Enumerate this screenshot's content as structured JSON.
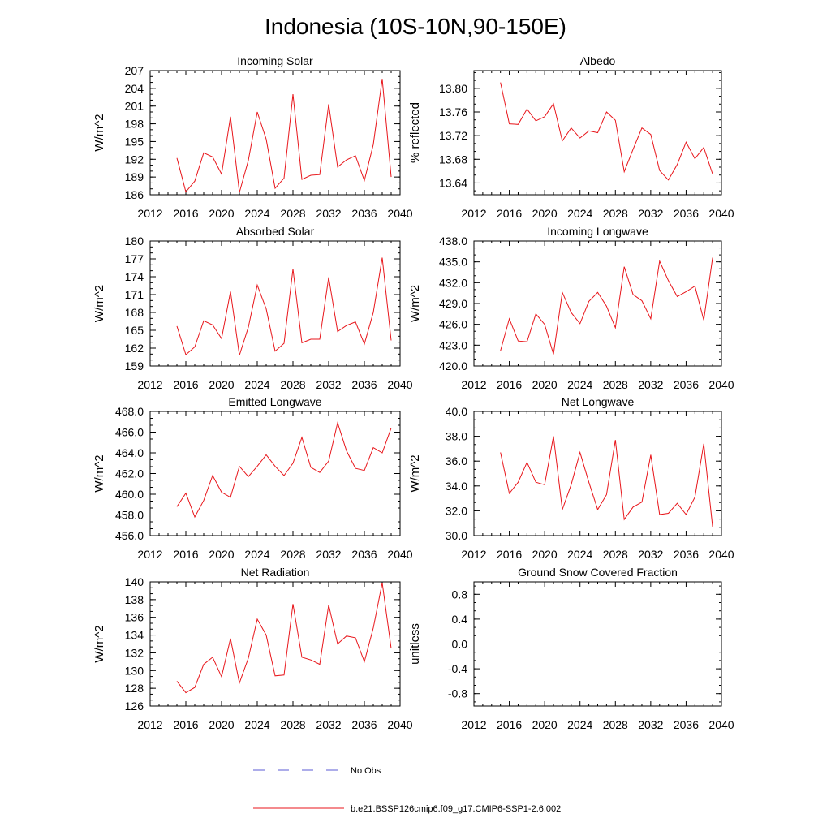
{
  "title": "Indonesia (10S-10N,90-150E)",
  "colors": {
    "model": "#e8161b",
    "obs": "#5b5bd6",
    "axis": "#000000"
  },
  "chart_data": [
    {
      "type": "line",
      "title": "Incoming Solar",
      "ylabel": "W/m^2",
      "xlim": [
        2012,
        2040
      ],
      "ylim": [
        186,
        207
      ],
      "xticks": [
        "2012",
        "2016",
        "2020",
        "2024",
        "2028",
        "2032",
        "2036",
        "2040"
      ],
      "yticks": [
        "186",
        "189",
        "192",
        "195",
        "198",
        "201",
        "204",
        "207"
      ],
      "x": [
        2015,
        2016,
        2017,
        2018,
        2019,
        2020,
        2021,
        2022,
        2023,
        2024,
        2025,
        2026,
        2027,
        2028,
        2029,
        2030,
        2031,
        2032,
        2033,
        2034,
        2035,
        2036,
        2037,
        2038,
        2039
      ],
      "values": [
        192.2,
        186.5,
        188.3,
        193.1,
        192.4,
        189.5,
        199.2,
        186.4,
        191.8,
        200.0,
        195.4,
        187.1,
        188.8,
        203.0,
        188.6,
        189.3,
        189.4,
        201.3,
        190.7,
        191.9,
        192.6,
        188.4,
        194.5,
        205.6,
        189.0
      ]
    },
    {
      "type": "line",
      "title": "Albedo",
      "ylabel": "% reflected",
      "xlim": [
        2012,
        2040
      ],
      "ylim": [
        13.62,
        13.83
      ],
      "xticks": [
        "2012",
        "2016",
        "2020",
        "2024",
        "2028",
        "2032",
        "2036",
        "2040"
      ],
      "yticks": [
        "13.64",
        "13.68",
        "13.72",
        "13.76",
        "13.80"
      ],
      "ytick_values": [
        13.64,
        13.68,
        13.72,
        13.76,
        13.8
      ],
      "x": [
        2015,
        2016,
        2017,
        2018,
        2019,
        2020,
        2021,
        2022,
        2023,
        2024,
        2025,
        2026,
        2027,
        2028,
        2029,
        2030,
        2031,
        2032,
        2033,
        2034,
        2035,
        2036,
        2037,
        2038,
        2039
      ],
      "values": [
        13.81,
        13.74,
        13.739,
        13.765,
        13.745,
        13.752,
        13.774,
        13.711,
        13.733,
        13.716,
        13.728,
        13.725,
        13.76,
        13.746,
        13.659,
        13.697,
        13.733,
        13.722,
        13.661,
        13.645,
        13.671,
        13.709,
        13.681,
        13.7,
        13.655
      ]
    },
    {
      "type": "line",
      "title": "Absorbed Solar",
      "ylabel": "W/m^2",
      "xlim": [
        2012,
        2040
      ],
      "ylim": [
        159,
        180
      ],
      "xticks": [
        "2012",
        "2016",
        "2020",
        "2024",
        "2028",
        "2032",
        "2036",
        "2040"
      ],
      "yticks": [
        "159",
        "162",
        "165",
        "168",
        "171",
        "174",
        "177",
        "180"
      ],
      "x": [
        2015,
        2016,
        2017,
        2018,
        2019,
        2020,
        2021,
        2022,
        2023,
        2024,
        2025,
        2026,
        2027,
        2028,
        2029,
        2030,
        2031,
        2032,
        2033,
        2034,
        2035,
        2036,
        2037,
        2038,
        2039
      ],
      "values": [
        165.7,
        160.9,
        162.2,
        166.6,
        165.9,
        163.6,
        171.5,
        160.8,
        165.5,
        172.6,
        168.6,
        161.5,
        162.8,
        175.3,
        162.9,
        163.5,
        163.5,
        173.9,
        164.8,
        165.8,
        166.4,
        162.7,
        168.0,
        177.2,
        163.3
      ]
    },
    {
      "type": "line",
      "title": "Incoming Longwave",
      "ylabel": "W/m^2",
      "xlim": [
        2012,
        2040
      ],
      "ylim": [
        420,
        438
      ],
      "xticks": [
        "2012",
        "2016",
        "2020",
        "2024",
        "2028",
        "2032",
        "2036",
        "2040"
      ],
      "yticks": [
        "420.0",
        "423.0",
        "426.0",
        "429.0",
        "432.0",
        "435.0",
        "438.0"
      ],
      "x": [
        2015,
        2016,
        2017,
        2018,
        2019,
        2020,
        2021,
        2022,
        2023,
        2024,
        2025,
        2026,
        2027,
        2028,
        2029,
        2030,
        2031,
        2032,
        2033,
        2034,
        2035,
        2036,
        2037,
        2038,
        2039
      ],
      "values": [
        422.2,
        426.8,
        423.6,
        423.5,
        427.5,
        426.0,
        421.7,
        430.6,
        427.7,
        426.1,
        429.3,
        430.6,
        428.6,
        425.5,
        434.3,
        430.3,
        429.4,
        426.8,
        435.1,
        432.3,
        430.0,
        430.7,
        431.5,
        426.6,
        435.6
      ]
    },
    {
      "type": "line",
      "title": "Emitted Longwave",
      "ylabel": "W/m^2",
      "xlim": [
        2012,
        2040
      ],
      "ylim": [
        456,
        468
      ],
      "xticks": [
        "2012",
        "2016",
        "2020",
        "2024",
        "2028",
        "2032",
        "2036",
        "2040"
      ],
      "yticks": [
        "456.0",
        "458.0",
        "460.0",
        "462.0",
        "464.0",
        "466.0",
        "468.0"
      ],
      "x": [
        2015,
        2016,
        2017,
        2018,
        2019,
        2020,
        2021,
        2022,
        2023,
        2024,
        2025,
        2026,
        2027,
        2028,
        2029,
        2030,
        2031,
        2032,
        2033,
        2034,
        2035,
        2036,
        2037,
        2038,
        2039
      ],
      "values": [
        458.8,
        460.1,
        457.8,
        459.4,
        461.8,
        460.2,
        459.7,
        462.7,
        461.7,
        462.7,
        463.8,
        462.7,
        461.8,
        463.0,
        465.5,
        462.6,
        462.1,
        463.2,
        466.9,
        464.2,
        462.5,
        462.3,
        464.5,
        464.0,
        466.4
      ]
    },
    {
      "type": "line",
      "title": "Net Longwave",
      "ylabel": "W/m^2",
      "xlim": [
        2012,
        2040
      ],
      "ylim": [
        30,
        40
      ],
      "xticks": [
        "2012",
        "2016",
        "2020",
        "2024",
        "2028",
        "2032",
        "2036",
        "2040"
      ],
      "yticks": [
        "30.0",
        "32.0",
        "34.0",
        "36.0",
        "38.0",
        "40.0"
      ],
      "x": [
        2015,
        2016,
        2017,
        2018,
        2019,
        2020,
        2021,
        2022,
        2023,
        2024,
        2025,
        2026,
        2027,
        2028,
        2029,
        2030,
        2031,
        2032,
        2033,
        2034,
        2035,
        2036,
        2037,
        2038,
        2039
      ],
      "values": [
        36.7,
        33.4,
        34.3,
        35.9,
        34.3,
        34.1,
        38.0,
        32.1,
        34.1,
        36.7,
        34.3,
        32.1,
        33.3,
        37.7,
        31.3,
        32.3,
        32.7,
        36.5,
        31.7,
        31.8,
        32.6,
        31.7,
        33.1,
        37.4,
        30.7
      ]
    },
    {
      "type": "line",
      "title": "Net Radiation",
      "ylabel": "W/m^2",
      "xlim": [
        2012,
        2040
      ],
      "ylim": [
        126,
        140
      ],
      "xticks": [
        "2012",
        "2016",
        "2020",
        "2024",
        "2028",
        "2032",
        "2036",
        "2040"
      ],
      "yticks": [
        "126",
        "128",
        "130",
        "132",
        "134",
        "136",
        "138",
        "140"
      ],
      "x": [
        2015,
        2016,
        2017,
        2018,
        2019,
        2020,
        2021,
        2022,
        2023,
        2024,
        2025,
        2026,
        2027,
        2028,
        2029,
        2030,
        2031,
        2032,
        2033,
        2034,
        2035,
        2036,
        2037,
        2038,
        2039
      ],
      "values": [
        128.8,
        127.5,
        128.1,
        130.7,
        131.5,
        129.3,
        133.6,
        128.6,
        131.4,
        135.8,
        134.0,
        129.4,
        129.5,
        137.5,
        131.5,
        131.2,
        130.7,
        137.4,
        133.0,
        133.9,
        133.7,
        131.0,
        134.8,
        139.9,
        132.5
      ]
    },
    {
      "type": "line",
      "title": "Ground Snow Covered Fraction",
      "ylabel": "unitless",
      "xlim": [
        2012,
        2040
      ],
      "ylim": [
        -1.0,
        1.0
      ],
      "xticks": [
        "2012",
        "2016",
        "2020",
        "2024",
        "2028",
        "2032",
        "2036",
        "2040"
      ],
      "yticks": [
        "-0.8",
        "-0.4",
        "0.0",
        "0.4",
        "0.8"
      ],
      "x": [
        2015,
        2039
      ],
      "values": [
        0.0,
        0.0
      ]
    }
  ],
  "legend": [
    {
      "label": "No Obs",
      "style": "dashed",
      "color": "#5b5bd6"
    },
    {
      "label": "b.e21.BSSP126cmip6.f09_g17.CMIP6-SSP1-2.6.002",
      "style": "solid",
      "color": "#e8161b"
    }
  ]
}
